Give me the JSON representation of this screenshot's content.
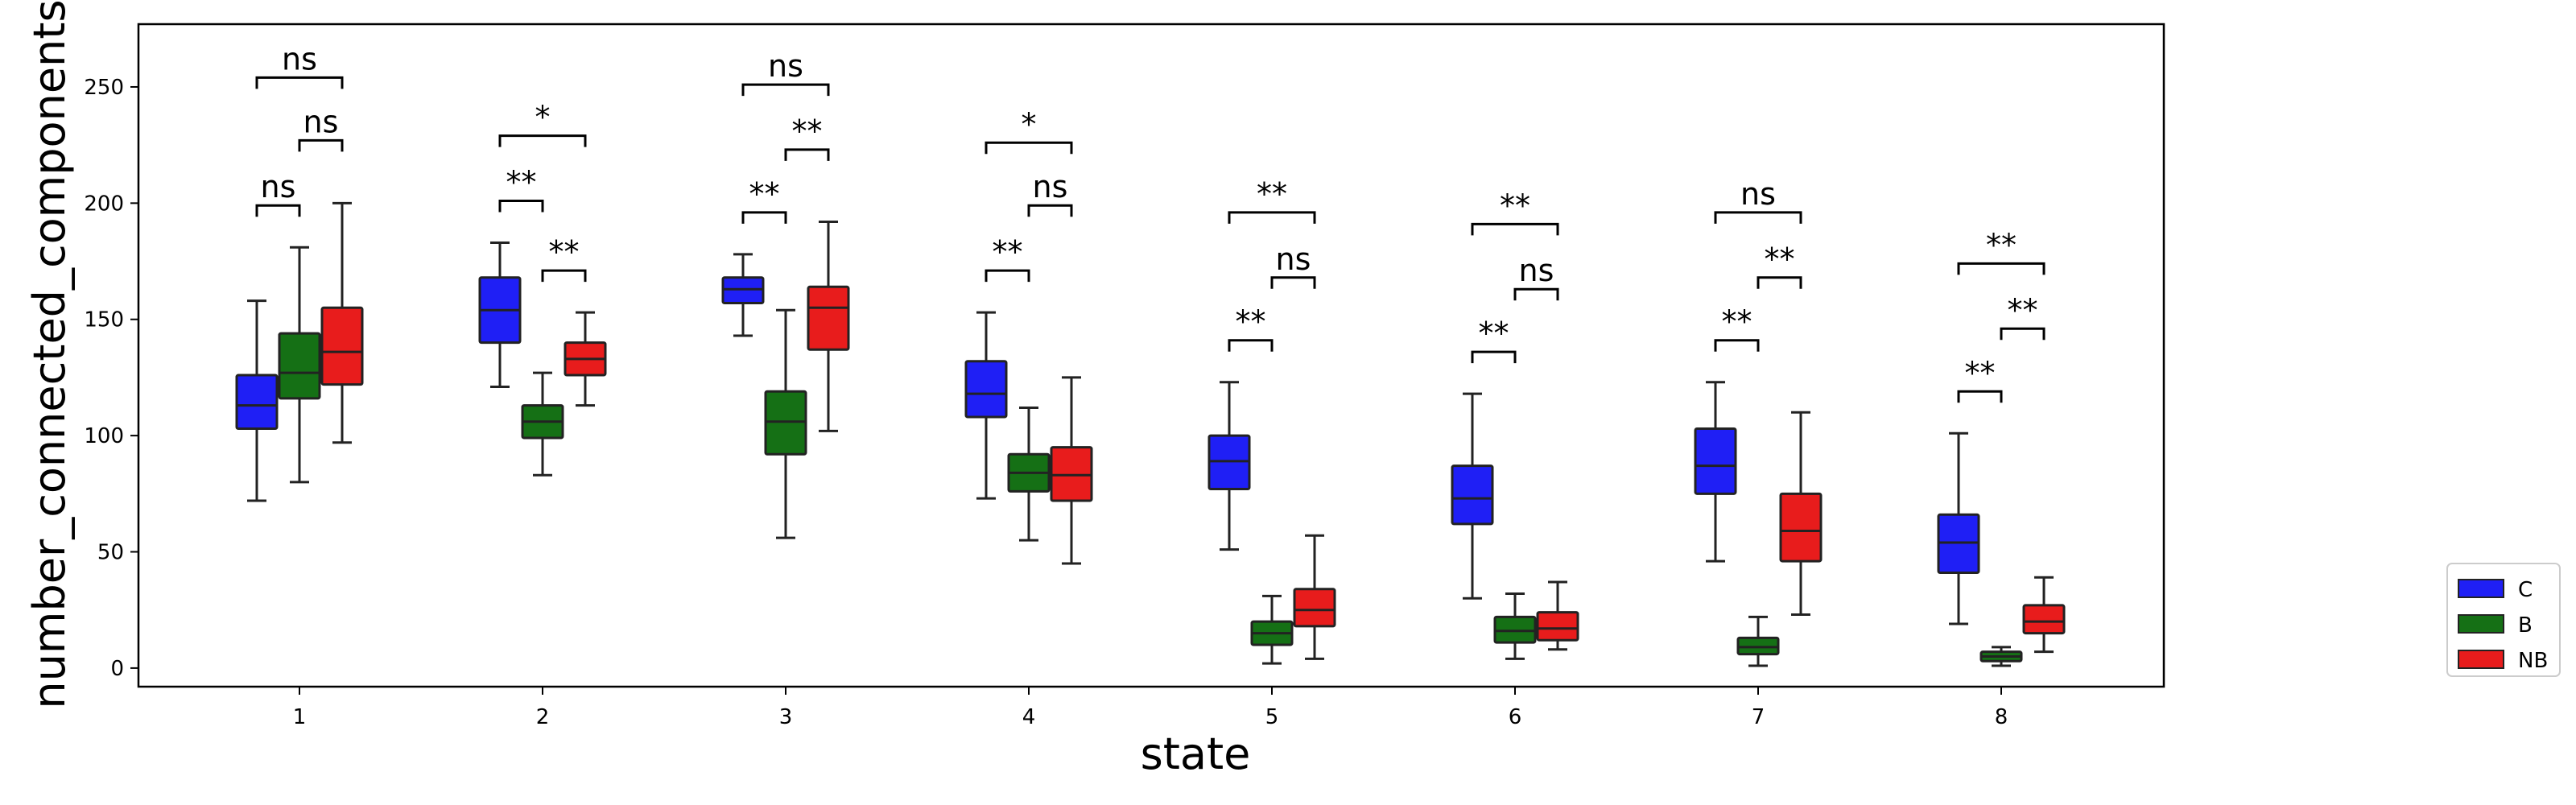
{
  "chart_data": {
    "type": "box",
    "xlabel": "state",
    "ylabel": "number_connected_components",
    "ylim": [
      -8,
      277
    ],
    "yticks": [
      0,
      50,
      100,
      150,
      200,
      250
    ],
    "categories": [
      "1",
      "2",
      "3",
      "4",
      "5",
      "6",
      "7",
      "8"
    ],
    "grid": false,
    "legend_position": "outside right",
    "series": [
      {
        "name": "C",
        "color": "#1f1ff5",
        "boxes": [
          {
            "min": 72,
            "q1": 103,
            "median": 113,
            "q3": 126,
            "max": 158
          },
          {
            "min": 121,
            "q1": 140,
            "median": 154,
            "q3": 168,
            "max": 183
          },
          {
            "min": 143,
            "q1": 157,
            "median": 163,
            "q3": 168,
            "max": 178
          },
          {
            "min": 73,
            "q1": 108,
            "median": 118,
            "q3": 132,
            "max": 153
          },
          {
            "min": 51,
            "q1": 77,
            "median": 89,
            "q3": 100,
            "max": 123
          },
          {
            "min": 30,
            "q1": 62,
            "median": 73,
            "q3": 87,
            "max": 118
          },
          {
            "min": 46,
            "q1": 75,
            "median": 87,
            "q3": 103,
            "max": 123
          },
          {
            "min": 19,
            "q1": 41,
            "median": 54,
            "q3": 66,
            "max": 101
          }
        ]
      },
      {
        "name": "B",
        "color": "#157015",
        "boxes": [
          {
            "min": 80,
            "q1": 116,
            "median": 127,
            "q3": 144,
            "max": 181
          },
          {
            "min": 83,
            "q1": 99,
            "median": 106,
            "q3": 113,
            "max": 127
          },
          {
            "min": 56,
            "q1": 92,
            "median": 106,
            "q3": 119,
            "max": 154
          },
          {
            "min": 55,
            "q1": 76,
            "median": 84,
            "q3": 92,
            "max": 112
          },
          {
            "min": 2,
            "q1": 10,
            "median": 15,
            "q3": 20,
            "max": 31
          },
          {
            "min": 4,
            "q1": 11,
            "median": 16,
            "q3": 22,
            "max": 32
          },
          {
            "min": 1,
            "q1": 6,
            "median": 9,
            "q3": 13,
            "max": 22
          },
          {
            "min": 1,
            "q1": 3,
            "median": 5,
            "q3": 7,
            "max": 9
          }
        ]
      },
      {
        "name": "NB",
        "color": "#e81c1c",
        "boxes": [
          {
            "min": 97,
            "q1": 122,
            "median": 136,
            "q3": 155,
            "max": 200
          },
          {
            "min": 113,
            "q1": 126,
            "median": 133,
            "q3": 140,
            "max": 153
          },
          {
            "min": 102,
            "q1": 137,
            "median": 155,
            "q3": 164,
            "max": 192
          },
          {
            "min": 45,
            "q1": 72,
            "median": 83,
            "q3": 95,
            "max": 125
          },
          {
            "min": 4,
            "q1": 18,
            "median": 25,
            "q3": 34,
            "max": 57
          },
          {
            "min": 8,
            "q1": 12,
            "median": 17,
            "q3": 24,
            "max": 37
          },
          {
            "min": 23,
            "q1": 46,
            "median": 59,
            "q3": 75,
            "max": 110
          },
          {
            "min": 7,
            "q1": 15,
            "median": 20,
            "q3": 27,
            "max": 39
          }
        ]
      }
    ],
    "annotations": [
      {
        "category": 0,
        "from": "C",
        "to": "B",
        "y": 199,
        "label": "ns"
      },
      {
        "category": 0,
        "from": "B",
        "to": "NB",
        "y": 227,
        "label": "ns"
      },
      {
        "category": 0,
        "from": "C",
        "to": "NB",
        "y": 254,
        "label": "ns"
      },
      {
        "category": 1,
        "from": "C",
        "to": "B",
        "y": 201,
        "label": "**"
      },
      {
        "category": 1,
        "from": "B",
        "to": "NB",
        "y": 171,
        "label": "**"
      },
      {
        "category": 1,
        "from": "C",
        "to": "NB",
        "y": 229,
        "label": "*"
      },
      {
        "category": 2,
        "from": "C",
        "to": "B",
        "y": 196,
        "label": "**"
      },
      {
        "category": 2,
        "from": "B",
        "to": "NB",
        "y": 223,
        "label": "**"
      },
      {
        "category": 2,
        "from": "C",
        "to": "NB",
        "y": 251,
        "label": "ns"
      },
      {
        "category": 3,
        "from": "C",
        "to": "B",
        "y": 171,
        "label": "**"
      },
      {
        "category": 3,
        "from": "B",
        "to": "NB",
        "y": 199,
        "label": "ns"
      },
      {
        "category": 3,
        "from": "C",
        "to": "NB",
        "y": 226,
        "label": "*"
      },
      {
        "category": 4,
        "from": "C",
        "to": "B",
        "y": 141,
        "label": "**"
      },
      {
        "category": 4,
        "from": "B",
        "to": "NB",
        "y": 168,
        "label": "ns"
      },
      {
        "category": 4,
        "from": "C",
        "to": "NB",
        "y": 196,
        "label": "**"
      },
      {
        "category": 5,
        "from": "C",
        "to": "B",
        "y": 136,
        "label": "**"
      },
      {
        "category": 5,
        "from": "B",
        "to": "NB",
        "y": 163,
        "label": "ns"
      },
      {
        "category": 5,
        "from": "C",
        "to": "NB",
        "y": 191,
        "label": "**"
      },
      {
        "category": 6,
        "from": "C",
        "to": "B",
        "y": 141,
        "label": "**"
      },
      {
        "category": 6,
        "from": "B",
        "to": "NB",
        "y": 168,
        "label": "**"
      },
      {
        "category": 6,
        "from": "C",
        "to": "NB",
        "y": 196,
        "label": "ns"
      },
      {
        "category": 7,
        "from": "C",
        "to": "B",
        "y": 119,
        "label": "**"
      },
      {
        "category": 7,
        "from": "B",
        "to": "NB",
        "y": 146,
        "label": "**"
      },
      {
        "category": 7,
        "from": "C",
        "to": "NB",
        "y": 174,
        "label": "**"
      }
    ]
  }
}
